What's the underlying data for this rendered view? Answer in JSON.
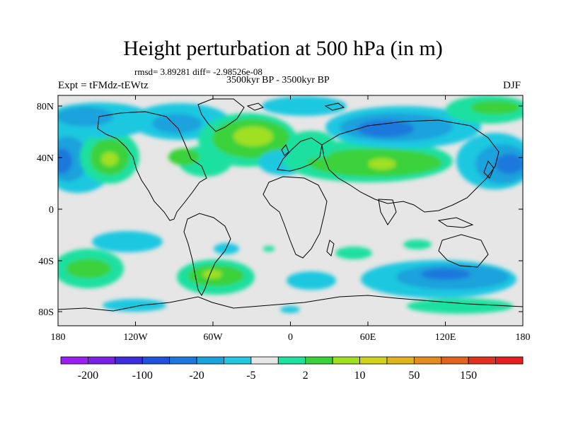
{
  "title": "Height perturbation at 500 hPa (in m)",
  "stats": "rmsd= 3.89281 diff= -2.98526e-08",
  "period": "3500kyr BP - 3500kyr BP",
  "expt": "Expt = tFMdz-tEWtz",
  "season": "DJF",
  "lat_labels": [
    "80N",
    "40N",
    "0",
    "40S",
    "80S"
  ],
  "lon_labels": [
    "180",
    "120W",
    "60W",
    "0",
    "60E",
    "120E",
    "180"
  ],
  "colorbar": {
    "colors": [
      "#9a1ff0",
      "#7a1fe8",
      "#3a2ee0",
      "#2050dc",
      "#1e78dc",
      "#1aa2dc",
      "#1ec8e0",
      "#e6e6e6",
      "#1ee0a0",
      "#3ad23a",
      "#a0e020",
      "#d2d21e",
      "#e0b41e",
      "#e08c1e",
      "#e0641e",
      "#e0321e",
      "#e61e1e"
    ],
    "labels": [
      "-200",
      "-100",
      "-20",
      "-5",
      "2",
      "10",
      "50",
      "150"
    ]
  }
}
